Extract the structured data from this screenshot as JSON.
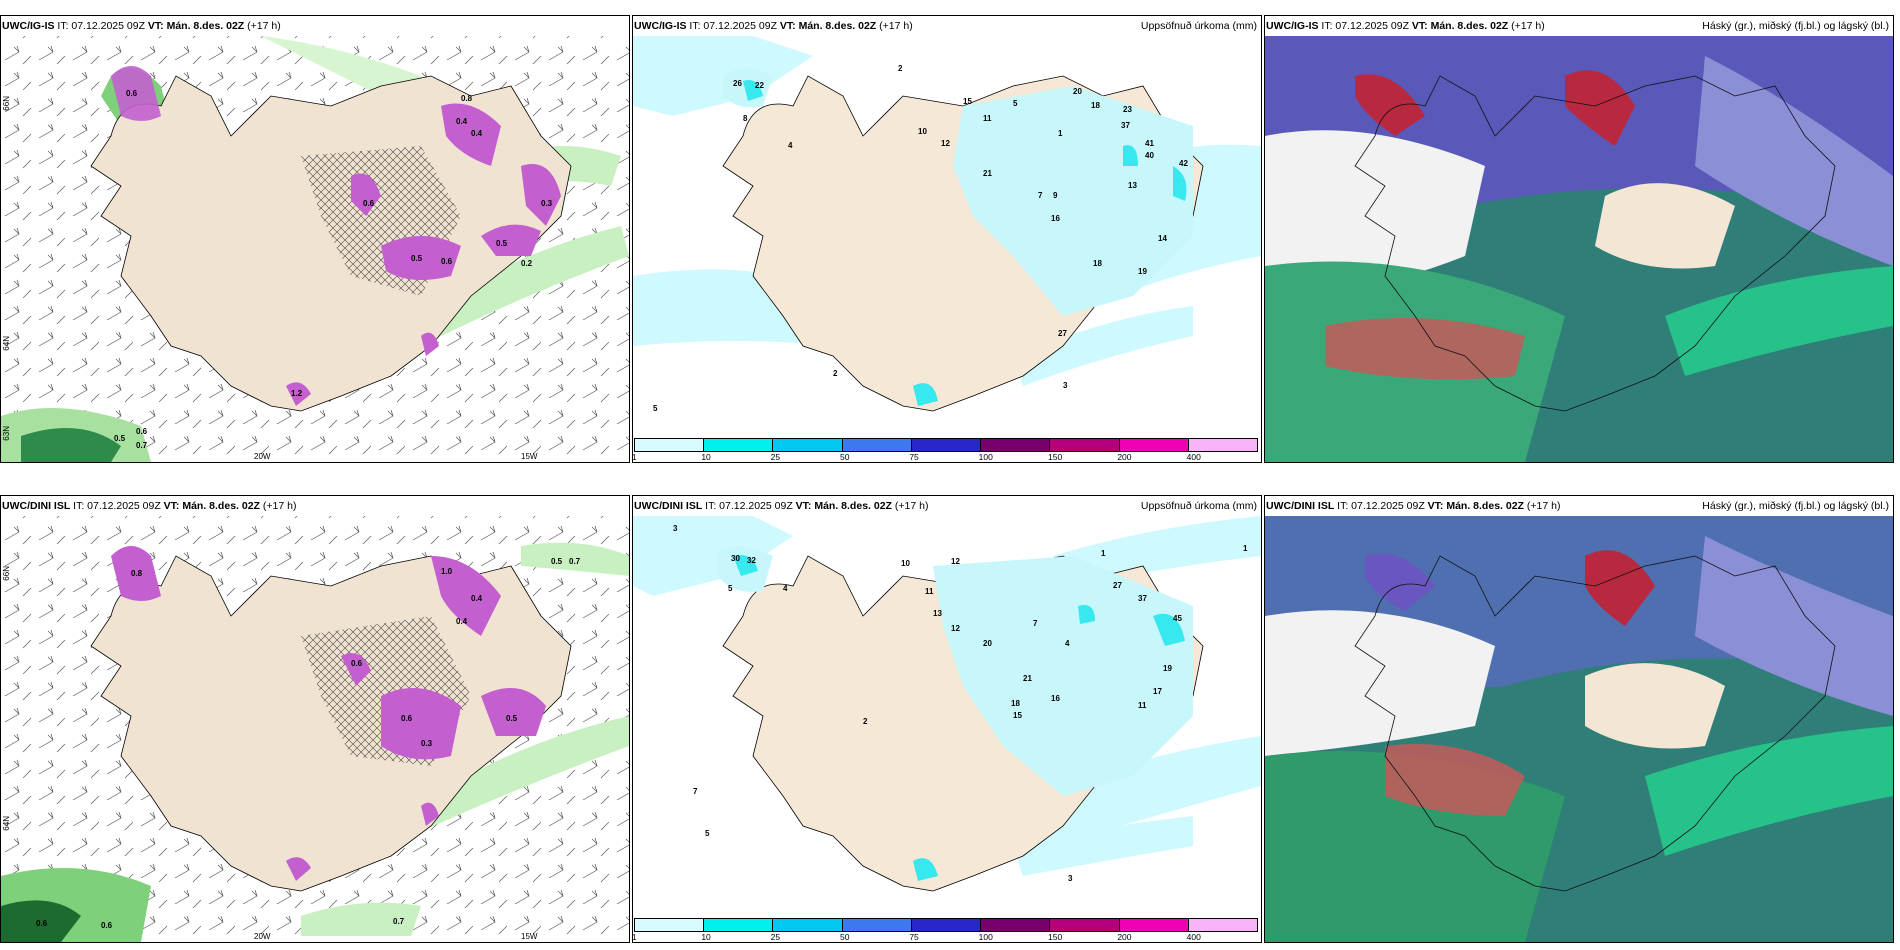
{
  "panels": {
    "p1": {
      "model": "UWC/IG-IS",
      "it": "IT: 07.12.2025 09Z",
      "vt_label": "VT:",
      "vt": "Mán. 8.des. 02Z",
      "lead": "(+17 h)"
    },
    "p2": {
      "model": "UWC/IG-IS",
      "it": "IT: 07.12.2025 09Z",
      "vt_label": "VT:",
      "vt": "Mán. 8.des. 02Z",
      "lead": "(+17 h)",
      "right": "Uppsöfnuð úrkoma (mm)"
    },
    "p3": {
      "model": "UWC/IG-IS",
      "it": "IT: 07.12.2025 09Z",
      "vt_label": "VT:",
      "vt": "Mán. 8.des. 02Z",
      "lead": "(+17 h)",
      "right": "Háský (gr.), miðský (fj.bl.) og lágský (bl.)"
    },
    "p4": {
      "model": "UWC/DINI ISL",
      "it": "IT: 07.12.2025 09Z",
      "vt_label": "VT:",
      "vt": "Mán. 8.des. 02Z",
      "lead": "(+17 h)"
    },
    "p5": {
      "model": "UWC/DINI ISL",
      "it": "IT: 07.12.2025 09Z",
      "vt_label": "VT:",
      "vt": "Mán. 8.des. 02Z",
      "lead": "(+17 h)",
      "right": "Uppsöfnuð úrkoma (mm)"
    },
    "p6": {
      "model": "UWC/DINI ISL",
      "it": "IT: 07.12.2025 09Z",
      "vt_label": "VT:",
      "vt": "Mán. 8.des. 02Z",
      "lead": "(+17 h)",
      "right": "Háský (gr.), miðský (fj.bl.) og lágský (bl.)"
    }
  },
  "axes": {
    "lon_20": "20W",
    "lon_15": "15W",
    "lat_66": "66N",
    "lat_64": "64N",
    "lat_63": "63N"
  },
  "colorbar": {
    "labels": [
      "1",
      "10",
      "25",
      "50",
      "75",
      "100",
      "150",
      "200",
      "400"
    ],
    "colors": [
      "#d8fbff",
      "#00f0f0",
      "#00c8f0",
      "#3c78f0",
      "#2828c8",
      "#78006e",
      "#b4007a",
      "#f000b4",
      "#f8b4f8"
    ]
  },
  "values": {
    "p1": [
      "0.5",
      "0.6",
      "0.7",
      "0.4",
      "0.8",
      "0.6",
      "0.5",
      "0.3",
      "0.6",
      "0.4",
      "0.5",
      "0.6",
      "0.2",
      "1.2"
    ],
    "p2": [
      "26",
      "22",
      "8",
      "4",
      "2",
      "1",
      "10",
      "12",
      "15",
      "11",
      "21",
      "5",
      "20",
      "18",
      "23",
      "37",
      "41",
      "40",
      "42",
      "13",
      "7",
      "9",
      "16",
      "18",
      "19",
      "14",
      "2",
      "27",
      "5",
      "3"
    ],
    "p4": [
      "0.5",
      "0.7",
      "0.6",
      "0.8",
      "0.4",
      "0.6",
      "0.3",
      "0.5",
      "1.0",
      "0.6",
      "0.4",
      "0.7",
      "0.6"
    ],
    "p5": [
      "30",
      "32",
      "5",
      "3",
      "4",
      "1",
      "10",
      "11",
      "13",
      "12",
      "20",
      "21",
      "18",
      "15",
      "16",
      "45",
      "37",
      "27",
      "19",
      "17",
      "11",
      "12",
      "4",
      "7",
      "7",
      "5",
      "3",
      "2",
      "1"
    ]
  }
}
